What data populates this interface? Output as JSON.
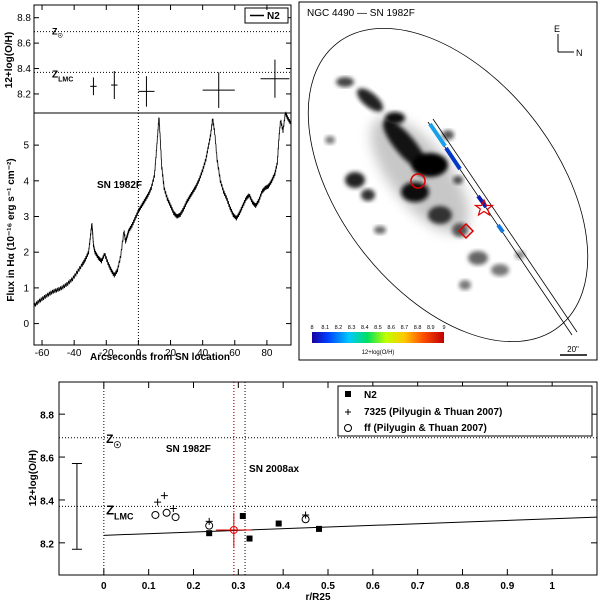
{
  "chart_data": [
    {
      "type": "scatter",
      "ylabel": "12+log(O/H)",
      "xlim": [
        -65,
        95
      ],
      "ylim": [
        8.05,
        8.9
      ],
      "yticks": [
        "8.2",
        "8.4",
        "8.6",
        "8.8"
      ],
      "legend": "N2",
      "refs": [
        {
          "label": "Z☉",
          "y": 8.69
        },
        {
          "label": "ZLMC",
          "y": 8.37
        }
      ],
      "series": [
        {
          "name": "N2",
          "points": [
            {
              "x": -28,
              "y": 8.26,
              "xerr": 2,
              "yerr": 0.07
            },
            {
              "x": -15,
              "y": 8.27,
              "xerr": 2,
              "yerr": 0.11
            },
            {
              "x": 5,
              "y": 8.22,
              "xerr": 5,
              "yerr": 0.12
            },
            {
              "x": 50,
              "y": 8.23,
              "xerr": 10,
              "yerr": 0.14
            },
            {
              "x": 85,
              "y": 8.32,
              "xerr": 9,
              "yerr": 0.15
            }
          ]
        }
      ]
    },
    {
      "type": "line",
      "xlabel": "Arcseconds from SN location",
      "ylabel": "Flux in Hα (10⁻¹⁶ erg s⁻¹ cm⁻²)",
      "xlim": [
        -65,
        95
      ],
      "ylim": [
        -0.6,
        5.9
      ],
      "xticks": [
        "-60",
        "-40",
        "-20",
        "0",
        "20",
        "40",
        "60",
        "80"
      ],
      "yticks": [
        "0",
        "1",
        "2",
        "3",
        "4",
        "5"
      ],
      "annotation": "SN 1982F",
      "profile": [
        [
          -65,
          0.5
        ],
        [
          -62,
          0.62
        ],
        [
          -59,
          0.72
        ],
        [
          -56,
          0.82
        ],
        [
          -53,
          0.9
        ],
        [
          -50,
          0.95
        ],
        [
          -47,
          1.02
        ],
        [
          -44,
          1.12
        ],
        [
          -41,
          1.25
        ],
        [
          -38,
          1.45
        ],
        [
          -35,
          1.65
        ],
        [
          -33,
          1.8
        ],
        [
          -31,
          2.0
        ],
        [
          -30,
          2.4
        ],
        [
          -29,
          2.8
        ],
        [
          -28.5,
          2.55
        ],
        [
          -28,
          2.2
        ],
        [
          -27,
          2.0
        ],
        [
          -25,
          1.85
        ],
        [
          -23,
          1.75
        ],
        [
          -21,
          1.95
        ],
        [
          -19,
          1.7
        ],
        [
          -17,
          1.5
        ],
        [
          -15,
          1.35
        ],
        [
          -13,
          1.5
        ],
        [
          -11,
          1.9
        ],
        [
          -9,
          2.6
        ],
        [
          -8,
          2.3
        ],
        [
          -7,
          2.45
        ],
        [
          -6,
          2.6
        ],
        [
          -4,
          2.75
        ],
        [
          -2,
          2.95
        ],
        [
          0,
          3.15
        ],
        [
          2,
          3.3
        ],
        [
          4,
          3.45
        ],
        [
          6,
          3.6
        ],
        [
          8,
          3.8
        ],
        [
          10,
          4.15
        ],
        [
          11,
          4.7
        ],
        [
          12,
          5.3
        ],
        [
          12.8,
          5.8
        ],
        [
          13.6,
          5.2
        ],
        [
          14.5,
          4.4
        ],
        [
          16,
          3.8
        ],
        [
          18,
          3.5
        ],
        [
          20,
          3.3
        ],
        [
          22,
          3.1
        ],
        [
          24,
          3.0
        ],
        [
          26,
          3.05
        ],
        [
          28,
          3.2
        ],
        [
          30,
          3.4
        ],
        [
          32,
          3.55
        ],
        [
          34,
          3.7
        ],
        [
          36,
          3.85
        ],
        [
          38,
          4.05
        ],
        [
          40,
          4.3
        ],
        [
          42,
          4.6
        ],
        [
          43.5,
          4.95
        ],
        [
          45,
          5.3
        ],
        [
          46.2,
          5.75
        ],
        [
          47.5,
          5.35
        ],
        [
          49,
          4.6
        ],
        [
          51,
          4.0
        ],
        [
          53,
          3.7
        ],
        [
          55,
          3.5
        ],
        [
          57,
          3.25
        ],
        [
          59,
          3.05
        ],
        [
          61,
          2.95
        ],
        [
          63,
          3.1
        ],
        [
          65,
          3.3
        ],
        [
          67,
          3.5
        ],
        [
          69,
          3.6
        ],
        [
          71,
          3.4
        ],
        [
          73,
          3.3
        ],
        [
          75,
          3.45
        ],
        [
          77,
          3.7
        ],
        [
          79,
          3.8
        ],
        [
          81,
          3.85
        ],
        [
          83,
          4.0
        ],
        [
          85,
          4.2
        ],
        [
          86.5,
          4.5
        ],
        [
          87.5,
          5.2
        ],
        [
          88.5,
          5.7
        ],
        [
          90,
          5.4
        ],
        [
          91.5,
          5.9
        ],
        [
          93,
          5.75
        ],
        [
          95,
          5.6
        ]
      ]
    },
    {
      "type": "image",
      "title": "NGC 4490 — SN 1982F",
      "compass": {
        "north": "N",
        "east": "E"
      },
      "colorbar_label": "12+log(O/H)",
      "colorbar_ticks": [
        "8",
        "8.1",
        "8.2",
        "8.3",
        "8.4",
        "8.5",
        "8.6",
        "8.7",
        "8.8",
        "8.9",
        "9"
      ],
      "scale_bar": "20\""
    },
    {
      "type": "scatter",
      "xlabel": "r/R25",
      "ylabel": "12+log(O/H)",
      "xlim": [
        -0.1,
        1.1
      ],
      "ylim": [
        8.05,
        8.95
      ],
      "xticks": [
        "0",
        "0.1",
        "0.2",
        "0.3",
        "0.4",
        "0.5",
        "0.6",
        "0.7",
        "0.8",
        "0.9",
        "1"
      ],
      "yticks": [
        "8.2",
        "8.4",
        "8.6",
        "8.8"
      ],
      "legend": "top-right",
      "refs": [
        {
          "label": "Z☉",
          "y": 8.69
        },
        {
          "label": "ZLMC",
          "y": 8.37
        }
      ],
      "sn_lines": [
        {
          "label": "SN 1982F",
          "x": 0.29
        },
        {
          "label": "SN 2008ax",
          "x": 0.315
        }
      ],
      "typical_error": {
        "x": -0.06,
        "y": 8.37,
        "yerr": 0.2
      },
      "fit": {
        "x": [
          0,
          1.1
        ],
        "y": [
          8.235,
          8.32
        ]
      },
      "series": [
        {
          "name": "N2",
          "marker": "filled-square",
          "points": [
            {
              "x": 0.235,
              "y": 8.245
            },
            {
              "x": 0.31,
              "y": 8.325
            },
            {
              "x": 0.325,
              "y": 8.22
            },
            {
              "x": 0.39,
              "y": 8.29
            },
            {
              "x": 0.48,
              "y": 8.265
            }
          ]
        },
        {
          "name": "7325 (Pilyugin & Thuan 2007)",
          "marker": "plus",
          "points": [
            {
              "x": 0.12,
              "y": 8.39
            },
            {
              "x": 0.135,
              "y": 8.42
            },
            {
              "x": 0.155,
              "y": 8.36
            },
            {
              "x": 0.235,
              "y": 8.3
            },
            {
              "x": 0.45,
              "y": 8.33
            }
          ]
        },
        {
          "name": "ff (Pilyugin & Thuan 2007)",
          "marker": "open-circle",
          "points": [
            {
              "x": 0.115,
              "y": 8.33
            },
            {
              "x": 0.14,
              "y": 8.34
            },
            {
              "x": 0.16,
              "y": 8.32
            },
            {
              "x": 0.235,
              "y": 8.28
            },
            {
              "x": 0.45,
              "y": 8.31
            }
          ]
        }
      ],
      "sn_point": {
        "x": 0.29,
        "y": 8.26,
        "xerr": 0.04,
        "yerr": 0.08
      }
    }
  ]
}
